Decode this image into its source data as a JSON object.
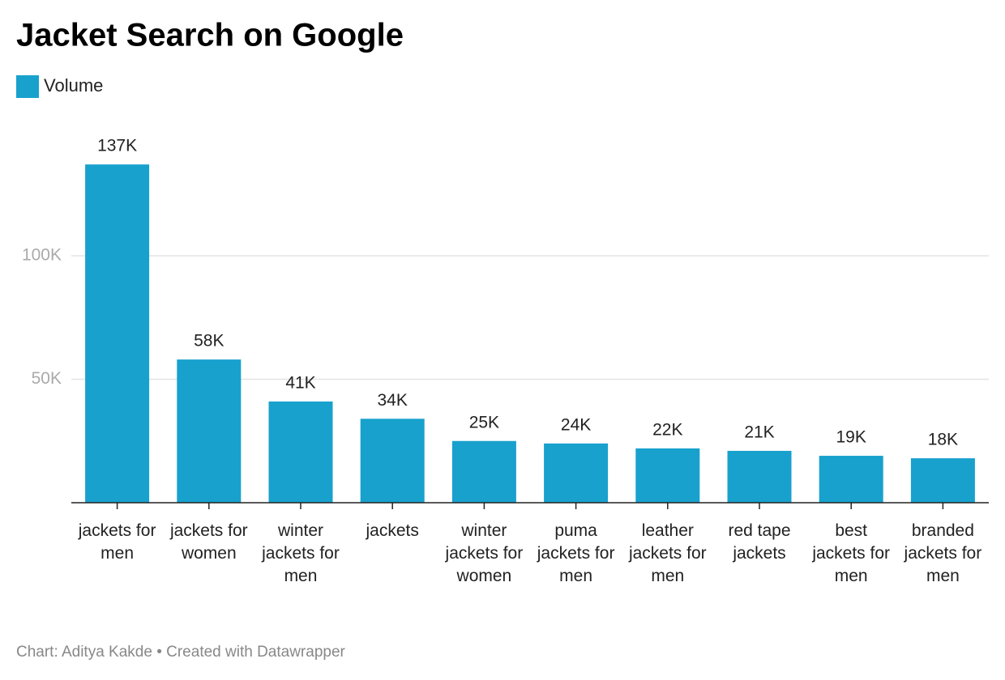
{
  "chart_data": {
    "type": "bar",
    "title": "Jacket Search on Google",
    "categories": [
      "jackets for men",
      "jackets for women",
      "winter jackets for men",
      "jackets",
      "winter jackets for women",
      "puma jackets for men",
      "leather jackets for men",
      "red tape jackets",
      "best jackets for men",
      "branded jackets for men"
    ],
    "series": [
      {
        "name": "Volume",
        "color": "#18a1cd",
        "values": [
          137000,
          58000,
          41000,
          34000,
          25000,
          24000,
          22000,
          21000,
          19000,
          18000
        ],
        "value_labels": [
          "137K",
          "58K",
          "41K",
          "34K",
          "25K",
          "24K",
          "22K",
          "21K",
          "19K",
          "18K"
        ]
      }
    ],
    "ylim": [
      0,
      140000
    ],
    "yticks": [
      {
        "value": 50000,
        "label": "50K"
      },
      {
        "value": 100000,
        "label": "100K"
      }
    ],
    "grid": true,
    "source": "Chart: Aditya Kakde • Created with Datawrapper"
  }
}
